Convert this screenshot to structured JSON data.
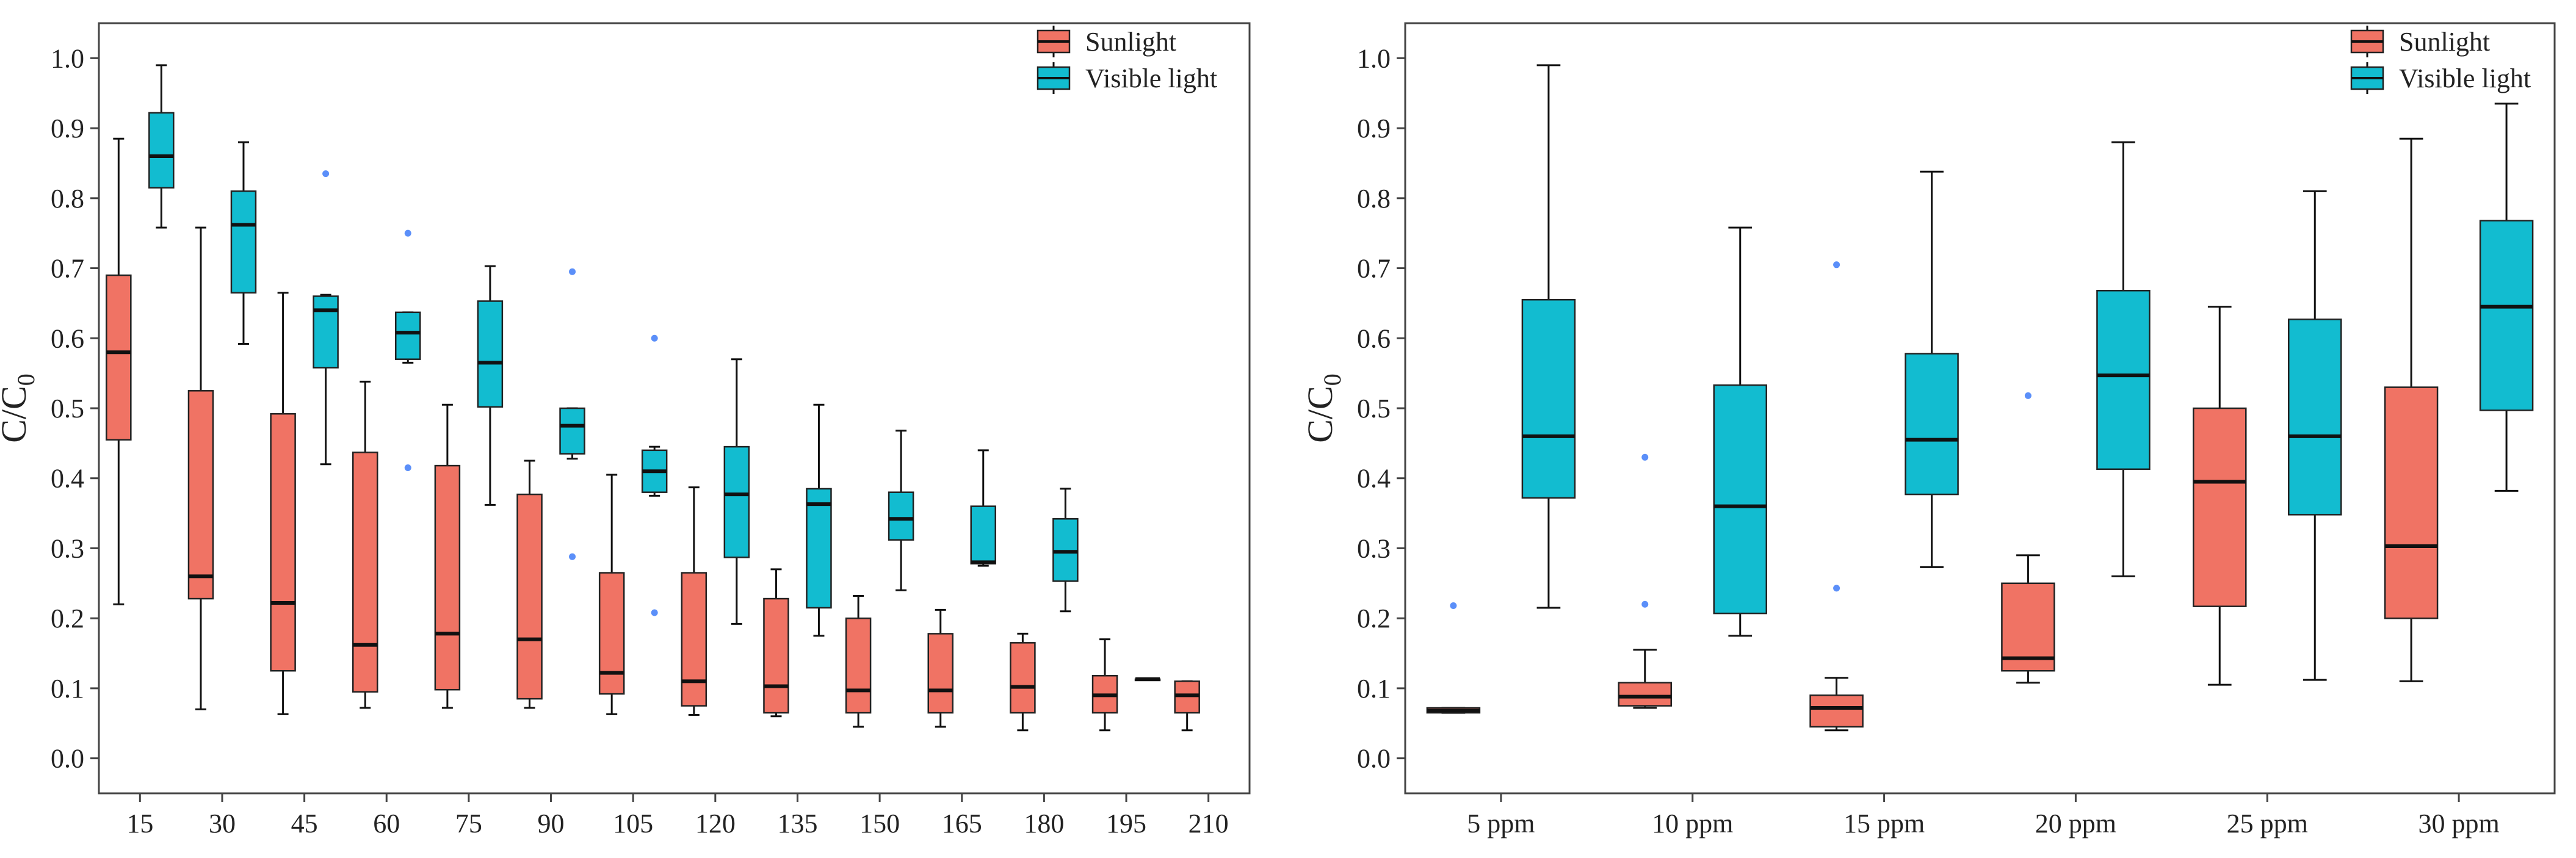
{
  "colors": {
    "sunlight": "#F07364",
    "visible_light": "#12BCD0",
    "outlier": "#5B8FF9",
    "axis": "#444444"
  },
  "chart_data": [
    {
      "type": "box",
      "ylabel": "C/C",
      "ylabel_subscript": "0",
      "ylim": [
        -0.05,
        1.05
      ],
      "yticks": [
        "0.0",
        "0.1",
        "0.2",
        "0.3",
        "0.4",
        "0.5",
        "0.6",
        "0.7",
        "0.8",
        "0.9",
        "1.0"
      ],
      "categories": [
        "15",
        "30",
        "45",
        "60",
        "75",
        "90",
        "105",
        "120",
        "135",
        "150",
        "165",
        "180",
        "195",
        "210"
      ],
      "legend": {
        "position": "top-right",
        "entries": [
          "Sunlight",
          "Visible light"
        ]
      },
      "series": [
        {
          "name": "Sunlight",
          "boxes": [
            {
              "min": 0.22,
              "q1": 0.455,
              "median": 0.58,
              "q3": 0.69,
              "max": 0.885,
              "outliers": []
            },
            {
              "min": 0.07,
              "q1": 0.228,
              "median": 0.26,
              "q3": 0.525,
              "max": 0.758,
              "outliers": []
            },
            {
              "min": 0.063,
              "q1": 0.125,
              "median": 0.222,
              "q3": 0.492,
              "max": 0.665,
              "outliers": []
            },
            {
              "min": 0.072,
              "q1": 0.095,
              "median": 0.162,
              "q3": 0.437,
              "max": 0.538,
              "outliers": []
            },
            {
              "min": 0.072,
              "q1": 0.098,
              "median": 0.178,
              "q3": 0.418,
              "max": 0.505,
              "outliers": []
            },
            {
              "min": 0.072,
              "q1": 0.085,
              "median": 0.17,
              "q3": 0.377,
              "max": 0.425,
              "outliers": []
            },
            {
              "min": 0.063,
              "q1": 0.092,
              "median": 0.122,
              "q3": 0.265,
              "max": 0.405,
              "outliers": []
            },
            {
              "min": 0.062,
              "q1": 0.075,
              "median": 0.11,
              "q3": 0.265,
              "max": 0.387,
              "outliers": []
            },
            {
              "min": 0.06,
              "q1": 0.065,
              "median": 0.103,
              "q3": 0.228,
              "max": 0.27,
              "outliers": []
            },
            {
              "min": 0.045,
              "q1": 0.065,
              "median": 0.097,
              "q3": 0.2,
              "max": 0.232,
              "outliers": []
            },
            {
              "min": 0.045,
              "q1": 0.065,
              "median": 0.097,
              "q3": 0.178,
              "max": 0.212,
              "outliers": []
            },
            {
              "min": 0.04,
              "q1": 0.065,
              "median": 0.102,
              "q3": 0.165,
              "max": 0.178,
              "outliers": []
            },
            {
              "min": 0.04,
              "q1": 0.065,
              "median": 0.09,
              "q3": 0.118,
              "max": 0.17,
              "outliers": []
            },
            {
              "min": 0.04,
              "q1": 0.065,
              "median": 0.09,
              "q3": 0.11,
              "max": 0.11,
              "outliers": []
            }
          ]
        },
        {
          "name": "Visible light",
          "boxes": [
            {
              "min": 0.758,
              "q1": 0.815,
              "median": 0.86,
              "q3": 0.922,
              "max": 0.99,
              "outliers": []
            },
            {
              "min": 0.592,
              "q1": 0.665,
              "median": 0.762,
              "q3": 0.81,
              "max": 0.88,
              "outliers": []
            },
            {
              "min": 0.42,
              "q1": 0.558,
              "median": 0.64,
              "q3": 0.66,
              "max": 0.662,
              "outliers": [
                0.835
              ]
            },
            {
              "min": 0.565,
              "q1": 0.57,
              "median": 0.608,
              "q3": 0.637,
              "max": 0.637,
              "outliers": [
                0.75,
                0.415
              ]
            },
            {
              "min": 0.362,
              "q1": 0.502,
              "median": 0.565,
              "q3": 0.653,
              "max": 0.703,
              "outliers": []
            },
            {
              "min": 0.428,
              "q1": 0.435,
              "median": 0.475,
              "q3": 0.5,
              "max": 0.5,
              "outliers": [
                0.695,
                0.288
              ]
            },
            {
              "min": 0.375,
              "q1": 0.38,
              "median": 0.41,
              "q3": 0.44,
              "max": 0.445,
              "outliers": [
                0.6,
                0.208
              ]
            },
            {
              "min": 0.192,
              "q1": 0.287,
              "median": 0.377,
              "q3": 0.445,
              "max": 0.57,
              "outliers": []
            },
            {
              "min": 0.175,
              "q1": 0.215,
              "median": 0.363,
              "q3": 0.385,
              "max": 0.505,
              "outliers": []
            },
            {
              "min": 0.24,
              "q1": 0.312,
              "median": 0.342,
              "q3": 0.38,
              "max": 0.468,
              "outliers": []
            },
            {
              "min": 0.275,
              "q1": 0.278,
              "median": 0.28,
              "q3": 0.36,
              "max": 0.44,
              "outliers": []
            },
            {
              "min": 0.21,
              "q1": 0.253,
              "median": 0.295,
              "q3": 0.342,
              "max": 0.385,
              "outliers": []
            },
            {
              "min": 0.113,
              "q1": 0.113,
              "median": 0.113,
              "q3": 0.113,
              "max": 0.113,
              "outliers": []
            },
            null
          ]
        }
      ]
    },
    {
      "type": "box",
      "ylabel": "C/C",
      "ylabel_subscript": "0",
      "ylim": [
        -0.05,
        1.05
      ],
      "yticks": [
        "0.0",
        "0.1",
        "0.2",
        "0.3",
        "0.4",
        "0.5",
        "0.6",
        "0.7",
        "0.8",
        "0.9",
        "1.0"
      ],
      "categories": [
        "5 ppm",
        "10 ppm",
        "15 ppm",
        "20 ppm",
        "25 ppm",
        "30 ppm"
      ],
      "legend": {
        "position": "top-right",
        "entries": [
          "Sunlight",
          "Visible light"
        ]
      },
      "series": [
        {
          "name": "Sunlight",
          "boxes": [
            {
              "min": 0.065,
              "q1": 0.065,
              "median": 0.068,
              "q3": 0.072,
              "max": 0.072,
              "outliers": [
                0.218
              ]
            },
            {
              "min": 0.072,
              "q1": 0.075,
              "median": 0.088,
              "q3": 0.108,
              "max": 0.155,
              "outliers": [
                0.43,
                0.22
              ]
            },
            {
              "min": 0.04,
              "q1": 0.045,
              "median": 0.072,
              "q3": 0.09,
              "max": 0.115,
              "outliers": [
                0.705,
                0.243
              ]
            },
            {
              "min": 0.108,
              "q1": 0.125,
              "median": 0.143,
              "q3": 0.25,
              "max": 0.29,
              "outliers": [
                0.518
              ]
            },
            {
              "min": 0.105,
              "q1": 0.217,
              "median": 0.395,
              "q3": 0.5,
              "max": 0.645,
              "outliers": []
            },
            {
              "min": 0.11,
              "q1": 0.2,
              "median": 0.303,
              "q3": 0.53,
              "max": 0.885,
              "outliers": []
            }
          ]
        },
        {
          "name": "Visible light",
          "boxes": [
            {
              "min": 0.215,
              "q1": 0.372,
              "median": 0.46,
              "q3": 0.655,
              "max": 0.99,
              "outliers": []
            },
            {
              "min": 0.175,
              "q1": 0.207,
              "median": 0.36,
              "q3": 0.533,
              "max": 0.758,
              "outliers": []
            },
            {
              "min": 0.273,
              "q1": 0.377,
              "median": 0.455,
              "q3": 0.578,
              "max": 0.838,
              "outliers": []
            },
            {
              "min": 0.26,
              "q1": 0.413,
              "median": 0.547,
              "q3": 0.668,
              "max": 0.88,
              "outliers": []
            },
            {
              "min": 0.112,
              "q1": 0.348,
              "median": 0.46,
              "q3": 0.627,
              "max": 0.81,
              "outliers": []
            },
            {
              "min": 0.382,
              "q1": 0.497,
              "median": 0.645,
              "q3": 0.768,
              "max": 0.935,
              "outliers": []
            }
          ]
        }
      ]
    }
  ]
}
